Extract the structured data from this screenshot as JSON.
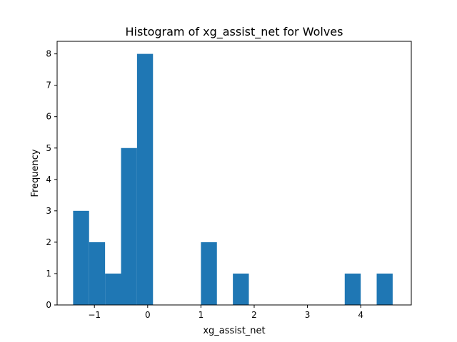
{
  "chart_data": {
    "type": "bar",
    "title": "Histogram of xg_assist_net for Wolves",
    "xlabel": "xg_assist_net",
    "ylabel": "Frequency",
    "bar_color": "#1f77b4",
    "xlim": [
      -1.7,
      4.95
    ],
    "ylim": [
      0,
      8.4
    ],
    "x_ticks": [
      -1,
      0,
      1,
      2,
      3,
      4
    ],
    "x_tick_labels": [
      "−1",
      "0",
      "1",
      "2",
      "3",
      "4"
    ],
    "y_ticks": [
      0,
      1,
      2,
      3,
      4,
      5,
      6,
      7,
      8
    ],
    "y_tick_labels": [
      "0",
      "1",
      "2",
      "3",
      "4",
      "5",
      "6",
      "7",
      "8"
    ],
    "bin_edges": [
      -1.4,
      -1.1,
      -0.8,
      -0.5,
      -0.2,
      0.1,
      0.4,
      0.7,
      1.0,
      1.3,
      1.6,
      1.9,
      2.2,
      2.5,
      2.8,
      3.1,
      3.4,
      3.7,
      4.0,
      4.3,
      4.6
    ],
    "counts": [
      3,
      2,
      1,
      5,
      8,
      0,
      0,
      0,
      2,
      0,
      1,
      0,
      0,
      0,
      0,
      0,
      0,
      1,
      0,
      1
    ],
    "grid": false,
    "legend": "none"
  }
}
